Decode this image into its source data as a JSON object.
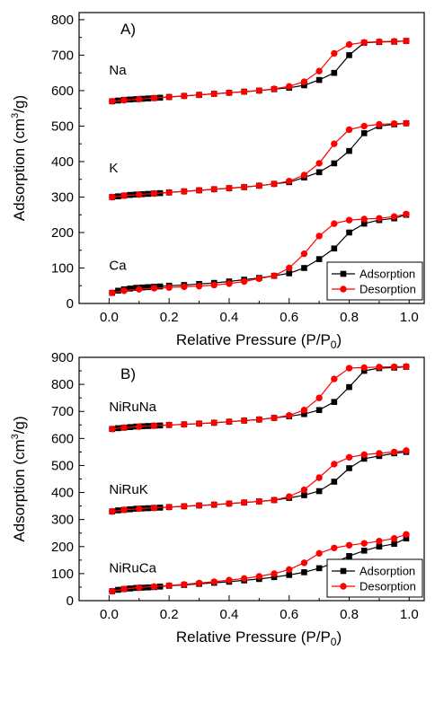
{
  "colors": {
    "adsorption": "#000000",
    "desorption": "#ff0000"
  },
  "chart_data": [
    {
      "type": "line",
      "panel": "A)",
      "xlabel": "Relative Pressure (P/P",
      "xlabel_sub": "0",
      "xlabel_close": ")",
      "ylabel": "Adsorption (cm",
      "ylabel_sup": "3",
      "ylabel_close": "/g)",
      "xlim": [
        -0.1,
        1.05
      ],
      "ylim": [
        0,
        820
      ],
      "xticks": [
        0.0,
        0.2,
        0.4,
        0.6,
        0.8,
        1.0
      ],
      "xtick_labels": [
        "0.0",
        "0.2",
        "0.4",
        "0.6",
        "0.8",
        "1.0"
      ],
      "yticks": [
        0,
        100,
        200,
        300,
        400,
        500,
        600,
        700,
        800
      ],
      "ytick_labels": [
        "0",
        "100",
        "200",
        "300",
        "400",
        "500",
        "600",
        "700",
        "800"
      ],
      "legend": {
        "placement": "bottom-right",
        "entries": [
          "Adsorption",
          "Desorption"
        ]
      },
      "series": [
        {
          "name": "Na",
          "label_x": 0.0,
          "label_y": 645,
          "adsorption": {
            "x": [
              0.01,
              0.03,
              0.05,
              0.07,
              0.09,
              0.11,
              0.13,
              0.15,
              0.17,
              0.2,
              0.25,
              0.3,
              0.35,
              0.4,
              0.45,
              0.5,
              0.55,
              0.6,
              0.65,
              0.7,
              0.75,
              0.8,
              0.85,
              0.9,
              0.95,
              0.99
            ],
            "y": [
              570,
              572,
              574,
              575,
              576,
              577,
              578,
              579,
              580,
              582,
              585,
              588,
              591,
              594,
              597,
              600,
              604,
              608,
              615,
              630,
              650,
              700,
              735,
              737,
              738,
              740
            ]
          },
          "desorption": {
            "x": [
              0.99,
              0.95,
              0.9,
              0.85,
              0.8,
              0.75,
              0.7,
              0.65,
              0.6,
              0.55,
              0.5,
              0.45,
              0.4,
              0.35,
              0.3,
              0.25,
              0.2,
              0.15,
              0.1,
              0.05,
              0.01
            ],
            "y": [
              740,
              739,
              738,
              736,
              730,
              705,
              655,
              625,
              612,
              605,
              600,
              597,
              594,
              591,
              588,
              585,
              582,
              579,
              576,
              573,
              570
            ]
          }
        },
        {
          "name": "K",
          "label_x": 0.0,
          "label_y": 370,
          "adsorption": {
            "x": [
              0.01,
              0.03,
              0.05,
              0.07,
              0.09,
              0.11,
              0.13,
              0.15,
              0.17,
              0.2,
              0.25,
              0.3,
              0.35,
              0.4,
              0.45,
              0.5,
              0.55,
              0.6,
              0.65,
              0.7,
              0.75,
              0.8,
              0.85,
              0.9,
              0.95,
              0.99
            ],
            "y": [
              300,
              302,
              304,
              306,
              307,
              308,
              309,
              310,
              311,
              313,
              316,
              319,
              322,
              325,
              328,
              332,
              337,
              342,
              355,
              370,
              395,
              430,
              480,
              500,
              505,
              508
            ]
          },
          "desorption": {
            "x": [
              0.99,
              0.95,
              0.9,
              0.85,
              0.8,
              0.75,
              0.7,
              0.65,
              0.6,
              0.55,
              0.5,
              0.45,
              0.4,
              0.35,
              0.3,
              0.25,
              0.2,
              0.15,
              0.1,
              0.05,
              0.01
            ],
            "y": [
              508,
              507,
              505,
              500,
              490,
              450,
              395,
              362,
              345,
              337,
              332,
              328,
              325,
              322,
              319,
              316,
              313,
              310,
              307,
              304,
              300
            ]
          }
        },
        {
          "name": "Ca",
          "label_x": 0.0,
          "label_y": 95,
          "adsorption": {
            "x": [
              0.01,
              0.03,
              0.05,
              0.07,
              0.09,
              0.11,
              0.13,
              0.15,
              0.17,
              0.2,
              0.25,
              0.3,
              0.35,
              0.4,
              0.45,
              0.5,
              0.55,
              0.6,
              0.65,
              0.7,
              0.75,
              0.8,
              0.85,
              0.9,
              0.95,
              0.99
            ],
            "y": [
              30,
              36,
              40,
              42,
              44,
              45,
              46,
              47,
              48,
              50,
              52,
              55,
              58,
              62,
              67,
              72,
              78,
              85,
              100,
              125,
              155,
              200,
              225,
              235,
              240,
              250
            ]
          },
          "desorption": {
            "x": [
              0.99,
              0.95,
              0.9,
              0.85,
              0.8,
              0.75,
              0.7,
              0.65,
              0.6,
              0.55,
              0.5,
              0.45,
              0.4,
              0.35,
              0.3,
              0.25,
              0.2,
              0.15,
              0.1,
              0.05,
              0.01
            ],
            "y": [
              252,
              245,
              240,
              238,
              235,
              225,
              190,
              140,
              100,
              78,
              70,
              62,
              56,
              52,
              49,
              47,
              45,
              43,
              40,
              36,
              30
            ]
          }
        }
      ]
    },
    {
      "type": "line",
      "panel": "B)",
      "xlabel": "Relative Pressure (P/P",
      "xlabel_sub": "0",
      "xlabel_close": ")",
      "ylabel": "Adsorption (cm",
      "ylabel_sup": "3",
      "ylabel_close": "/g)",
      "xlim": [
        -0.1,
        1.05
      ],
      "ylim": [
        0,
        900
      ],
      "xticks": [
        0.0,
        0.2,
        0.4,
        0.6,
        0.8,
        1.0
      ],
      "xtick_labels": [
        "0.0",
        "0.2",
        "0.4",
        "0.6",
        "0.8",
        "1.0"
      ],
      "yticks": [
        0,
        100,
        200,
        300,
        400,
        500,
        600,
        700,
        800,
        900
      ],
      "ytick_labels": [
        "0",
        "100",
        "200",
        "300",
        "400",
        "500",
        "600",
        "700",
        "800",
        "900"
      ],
      "legend": {
        "placement": "bottom-right",
        "entries": [
          "Adsorption",
          "Desorption"
        ]
      },
      "series": [
        {
          "name": "NiRuNa",
          "label_x": 0.0,
          "label_y": 700,
          "adsorption": {
            "x": [
              0.01,
              0.03,
              0.05,
              0.07,
              0.09,
              0.11,
              0.13,
              0.15,
              0.17,
              0.2,
              0.25,
              0.3,
              0.35,
              0.4,
              0.45,
              0.5,
              0.55,
              0.6,
              0.65,
              0.7,
              0.75,
              0.8,
              0.85,
              0.9,
              0.95,
              0.99
            ],
            "y": [
              635,
              638,
              640,
              642,
              644,
              645,
              646,
              647,
              648,
              650,
              652,
              655,
              658,
              662,
              666,
              670,
              676,
              682,
              690,
              705,
              735,
              790,
              850,
              860,
              862,
              865
            ]
          },
          "desorption": {
            "x": [
              0.99,
              0.95,
              0.9,
              0.85,
              0.8,
              0.75,
              0.7,
              0.65,
              0.6,
              0.55,
              0.5,
              0.45,
              0.4,
              0.35,
              0.3,
              0.25,
              0.2,
              0.15,
              0.1,
              0.05,
              0.01
            ],
            "y": [
              866,
              865,
              864,
              862,
              860,
              820,
              750,
              705,
              685,
              676,
              670,
              666,
              662,
              658,
              655,
              652,
              650,
              647,
              644,
              640,
              635
            ]
          }
        },
        {
          "name": "NiRuK",
          "label_x": 0.0,
          "label_y": 395,
          "adsorption": {
            "x": [
              0.01,
              0.03,
              0.05,
              0.07,
              0.09,
              0.11,
              0.13,
              0.15,
              0.17,
              0.2,
              0.25,
              0.3,
              0.35,
              0.4,
              0.45,
              0.5,
              0.55,
              0.6,
              0.65,
              0.7,
              0.75,
              0.8,
              0.85,
              0.9,
              0.95,
              0.99
            ],
            "y": [
              330,
              334,
              336,
              338,
              340,
              341,
              342,
              343,
              344,
              346,
              349,
              352,
              355,
              359,
              363,
              367,
              372,
              380,
              390,
              405,
              440,
              490,
              525,
              535,
              545,
              550
            ]
          },
          "desorption": {
            "x": [
              0.99,
              0.95,
              0.9,
              0.85,
              0.8,
              0.75,
              0.7,
              0.65,
              0.6,
              0.55,
              0.5,
              0.45,
              0.4,
              0.35,
              0.3,
              0.25,
              0.2,
              0.15,
              0.1,
              0.05,
              0.01
            ],
            "y": [
              555,
              550,
              545,
              540,
              530,
              505,
              455,
              410,
              385,
              372,
              367,
              363,
              359,
              355,
              352,
              349,
              346,
              343,
              340,
              336,
              330
            ]
          }
        },
        {
          "name": "NiRuCa",
          "label_x": 0.0,
          "label_y": 105,
          "adsorption": {
            "x": [
              0.01,
              0.03,
              0.05,
              0.07,
              0.09,
              0.11,
              0.13,
              0.15,
              0.17,
              0.2,
              0.25,
              0.3,
              0.35,
              0.4,
              0.45,
              0.5,
              0.55,
              0.6,
              0.65,
              0.7,
              0.75,
              0.8,
              0.85,
              0.9,
              0.95,
              0.99
            ],
            "y": [
              35,
              40,
              43,
              45,
              47,
              48,
              49,
              50,
              52,
              55,
              58,
              62,
              66,
              70,
              75,
              80,
              87,
              95,
              105,
              120,
              140,
              165,
              185,
              200,
              210,
              230
            ]
          },
          "desorption": {
            "x": [
              0.99,
              0.95,
              0.9,
              0.85,
              0.8,
              0.75,
              0.7,
              0.65,
              0.6,
              0.55,
              0.5,
              0.45,
              0.4,
              0.35,
              0.3,
              0.25,
              0.2,
              0.15,
              0.1,
              0.05,
              0.01
            ],
            "y": [
              245,
              230,
              220,
              212,
              205,
              195,
              175,
              140,
              115,
              100,
              90,
              82,
              76,
              70,
              65,
              60,
              56,
              52,
              48,
              43,
              35
            ]
          }
        }
      ]
    }
  ]
}
